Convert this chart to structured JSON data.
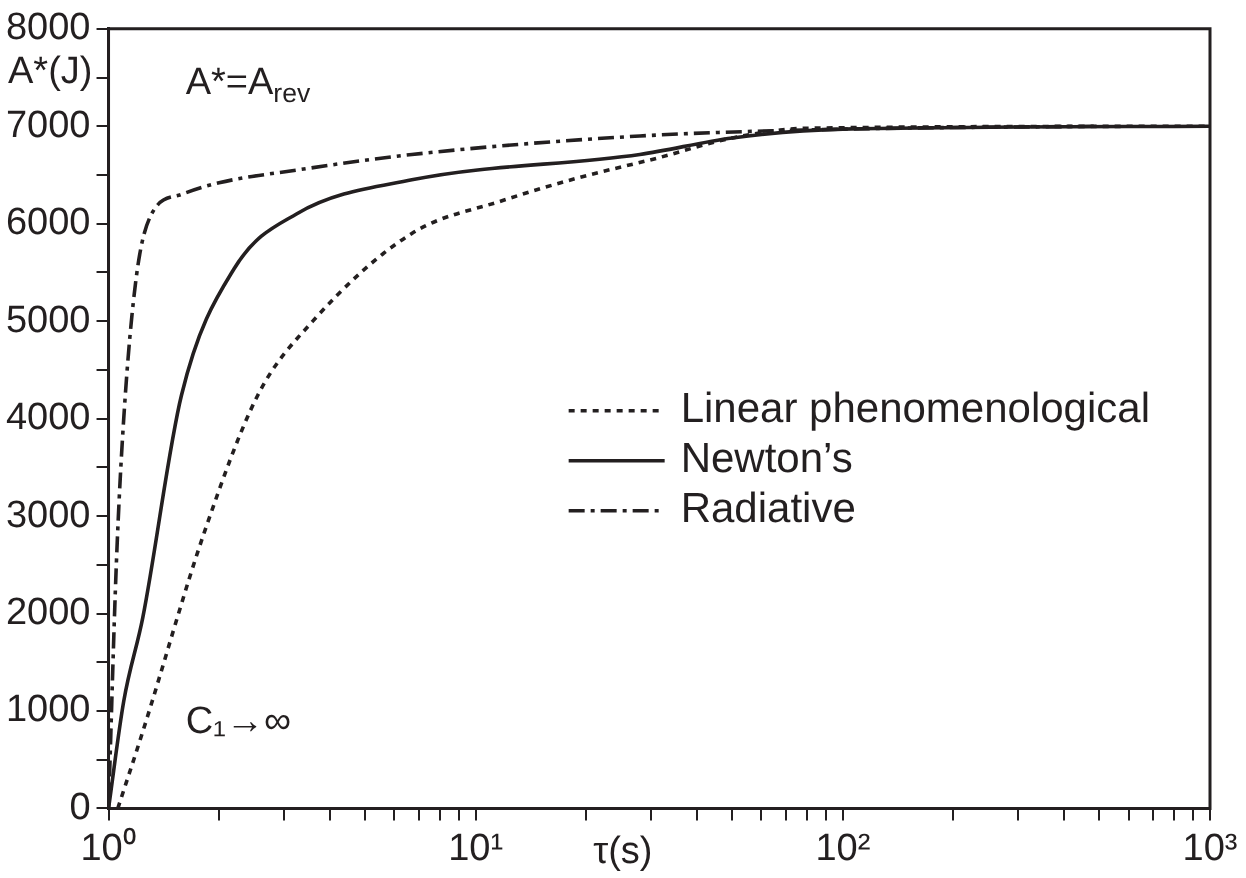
{
  "chart_data": {
    "type": "line",
    "xlabel": "τ(s)",
    "ylabel": "A*(J)",
    "log": "x",
    "xlim": [
      1,
      1000
    ],
    "ylim": [
      0,
      8000
    ],
    "xticks": [
      {
        "value": 1,
        "label": "10⁰"
      },
      {
        "value": 2,
        "label": null
      },
      {
        "value": 3,
        "label": null
      },
      {
        "value": 4,
        "label": null
      },
      {
        "value": 5,
        "label": null
      },
      {
        "value": 6,
        "label": null
      },
      {
        "value": 7,
        "label": null
      },
      {
        "value": 8,
        "label": null
      },
      {
        "value": 9,
        "label": null
      },
      {
        "value": 10,
        "label": "10¹"
      },
      {
        "value": 20,
        "label": null
      },
      {
        "value": 30,
        "label": null
      },
      {
        "value": 40,
        "label": null
      },
      {
        "value": 50,
        "label": null
      },
      {
        "value": 60,
        "label": null
      },
      {
        "value": 70,
        "label": null
      },
      {
        "value": 80,
        "label": null
      },
      {
        "value": 90,
        "label": null
      },
      {
        "value": 100,
        "label": "10²"
      },
      {
        "value": 200,
        "label": null
      },
      {
        "value": 300,
        "label": null
      },
      {
        "value": 400,
        "label": null
      },
      {
        "value": 500,
        "label": null
      },
      {
        "value": 600,
        "label": null
      },
      {
        "value": 700,
        "label": null
      },
      {
        "value": 800,
        "label": null
      },
      {
        "value": 900,
        "label": null
      },
      {
        "value": 1000,
        "label": "10³"
      }
    ],
    "yticks": [
      0,
      {
        "value": 500,
        "label": null
      },
      1000,
      {
        "value": 1500,
        "label": null
      },
      2000,
      {
        "value": 2500,
        "label": null
      },
      3000,
      {
        "value": 3500,
        "label": null
      },
      4000,
      {
        "value": 4500,
        "label": null
      },
      5000,
      {
        "value": 5500,
        "label": null
      },
      6000,
      {
        "value": 6500,
        "label": null
      },
      7000,
      {
        "value": 7500,
        "label": null
      },
      8000
    ],
    "grid": false,
    "legend": "right",
    "marker": "none",
    "series": [
      {
        "name": "Linear phenomenological",
        "color": "#231f20",
        "line_style": "dotted",
        "x": [
          1.06,
          1.24,
          1.83,
          2.55,
          3.6,
          6.7,
          11.9,
          19,
          31,
          50,
          80,
          1000
        ],
        "values": [
          0,
          790,
          2850,
          4240,
          5000,
          5900,
          6240,
          6470,
          6670,
          6880,
          6980,
          7000
        ]
      },
      {
        "name": "Newton’s",
        "color": "#231f20",
        "line_style": "solid",
        "x": [
          1,
          1.1,
          1.24,
          1.58,
          2.2,
          3.25,
          6.7,
          28,
          50,
          100,
          1000
        ],
        "values": [
          0,
          1100,
          1960,
          4240,
          5540,
          6100,
          6450,
          6710,
          6880,
          6970,
          7000
        ]
      },
      {
        "name": "Radiative",
        "color": "#231f20",
        "line_style": "dashdot",
        "x": [
          1,
          1.05,
          1.1,
          1.19,
          1.31,
          1.58,
          2,
          3.25,
          6.7,
          28,
          100,
          500
        ],
        "values": [
          0,
          2500,
          4000,
          5450,
          6100,
          6300,
          6420,
          6550,
          6710,
          6900,
          6970,
          7000
        ]
      }
    ],
    "annotations": [
      "A*=A$_{rev}$",
      "C₁→∞"
    ]
  }
}
